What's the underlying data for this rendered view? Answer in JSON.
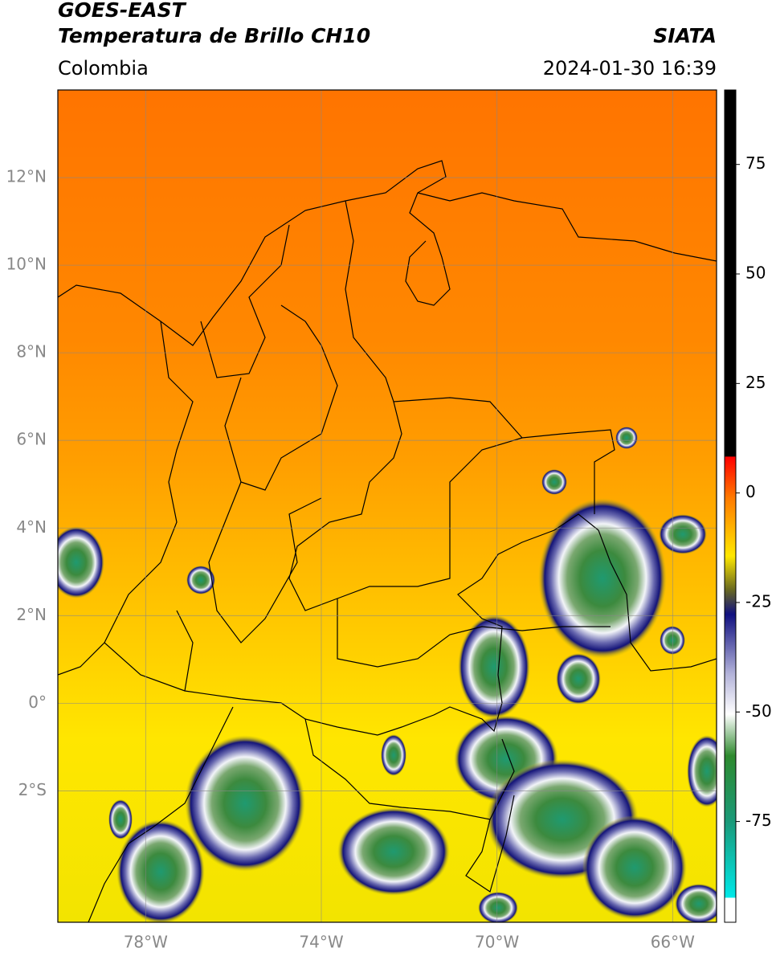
{
  "header": {
    "satellite": "GOES-EAST",
    "product": "Temperatura de Brillo CH10",
    "region": "Colombia",
    "source": "SIATA",
    "datetime": "2024-01-30 16:39"
  },
  "map": {
    "lon_lim": [
      -80,
      -65
    ],
    "lat_lim": [
      -5,
      14
    ],
    "lat_ticks": [
      {
        "value": 12,
        "label": "12°N"
      },
      {
        "value": 10,
        "label": "10°N"
      },
      {
        "value": 8,
        "label": "8°N"
      },
      {
        "value": 6,
        "label": "6°N"
      },
      {
        "value": 4,
        "label": "4°N"
      },
      {
        "value": 2,
        "label": "2°N"
      },
      {
        "value": 0,
        "label": "0°"
      },
      {
        "value": -2,
        "label": "2°S"
      }
    ],
    "lon_ticks": [
      {
        "value": -78,
        "label": "78°W"
      },
      {
        "value": -74,
        "label": "74°W"
      },
      {
        "value": -70,
        "label": "70°W"
      },
      {
        "value": -66,
        "label": "66°W"
      }
    ]
  },
  "colorbar": {
    "lim": [
      -98,
      92
    ],
    "ticks": [
      75,
      50,
      25,
      0,
      -25,
      -50,
      -75
    ]
  }
}
